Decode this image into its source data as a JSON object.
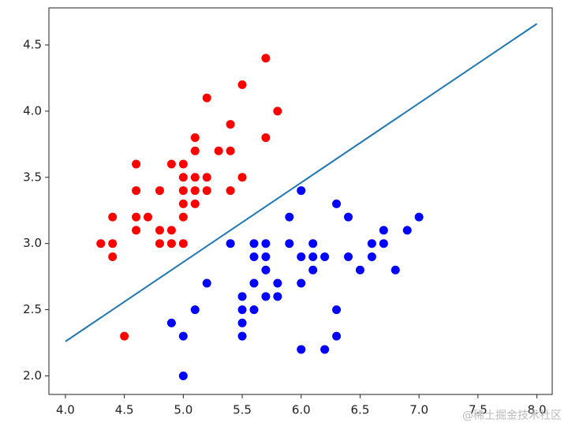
{
  "chart_data": {
    "type": "scatter",
    "xlim": [
      3.86,
      8.13
    ],
    "ylim": [
      1.86,
      4.78
    ],
    "xticks": [
      {
        "value": 4.0,
        "label": "4.0"
      },
      {
        "value": 4.5,
        "label": "4.5"
      },
      {
        "value": 5.0,
        "label": "5.0"
      },
      {
        "value": 5.5,
        "label": "5.5"
      },
      {
        "value": 6.0,
        "label": "6.0"
      },
      {
        "value": 6.5,
        "label": "6.5"
      },
      {
        "value": 7.0,
        "label": "7.0"
      },
      {
        "value": 7.5,
        "label": "7.5"
      },
      {
        "value": 8.0,
        "label": "8.0"
      }
    ],
    "yticks": [
      {
        "value": 2.0,
        "label": "2.0"
      },
      {
        "value": 2.5,
        "label": "2.5"
      },
      {
        "value": 3.0,
        "label": "3.0"
      },
      {
        "value": 3.5,
        "label": "3.5"
      },
      {
        "value": 4.0,
        "label": "4.0"
      },
      {
        "value": 4.5,
        "label": "4.5"
      }
    ],
    "grid": false,
    "watermark": "@稀土掘金技术社区",
    "series": [
      {
        "color": "#ff0000",
        "kind": "points",
        "x": [
          5.7,
          5.5,
          5.2,
          5.8,
          5.4,
          5.1,
          5.7,
          5.1,
          5.3,
          5.4,
          4.6,
          4.9,
          5.0,
          5.0,
          5.1,
          5.2,
          5.5,
          4.6,
          4.8,
          5.0,
          5.1,
          5.2,
          5.4,
          5.0,
          5.1,
          4.4,
          4.6,
          4.7,
          5.0,
          4.6,
          4.8,
          4.9,
          4.3,
          4.4,
          4.8,
          4.9,
          5.0,
          4.4,
          4.5
        ],
        "values": [
          4.4,
          4.2,
          4.1,
          4.0,
          3.9,
          3.8,
          3.8,
          3.7,
          3.7,
          3.7,
          3.6,
          3.6,
          3.6,
          3.5,
          3.5,
          3.5,
          3.5,
          3.4,
          3.4,
          3.4,
          3.4,
          3.4,
          3.4,
          3.3,
          3.3,
          3.2,
          3.2,
          3.2,
          3.2,
          3.1,
          3.1,
          3.1,
          3.0,
          3.0,
          3.0,
          3.0,
          3.0,
          2.9,
          2.3
        ]
      },
      {
        "color": "#0000ff",
        "kind": "points",
        "x": [
          6.0,
          5.9,
          6.3,
          6.4,
          7.0,
          6.7,
          6.9,
          5.4,
          5.6,
          5.7,
          5.9,
          6.1,
          6.6,
          6.7,
          5.6,
          5.7,
          6.0,
          6.1,
          6.2,
          6.4,
          6.6,
          5.7,
          6.1,
          6.5,
          6.8,
          5.2,
          5.6,
          5.8,
          6.0,
          5.5,
          5.7,
          5.8,
          5.5,
          5.1,
          5.6,
          6.3,
          4.9,
          5.5,
          5.0,
          5.5,
          6.3,
          6.0,
          6.2,
          5.0
        ],
        "values": [
          3.4,
          3.2,
          3.3,
          3.2,
          3.2,
          3.1,
          3.1,
          3.0,
          3.0,
          3.0,
          3.0,
          3.0,
          3.0,
          3.0,
          2.9,
          2.9,
          2.9,
          2.9,
          2.9,
          2.9,
          2.9,
          2.8,
          2.8,
          2.8,
          2.8,
          2.7,
          2.7,
          2.7,
          2.7,
          2.6,
          2.6,
          2.6,
          2.5,
          2.5,
          2.5,
          2.5,
          2.4,
          2.4,
          2.3,
          2.3,
          2.3,
          2.2,
          2.2,
          2.0
        ]
      },
      {
        "color": "#1f77b4",
        "kind": "line",
        "x": [
          4.0,
          8.0
        ],
        "values": [
          2.26,
          4.66
        ]
      }
    ]
  }
}
